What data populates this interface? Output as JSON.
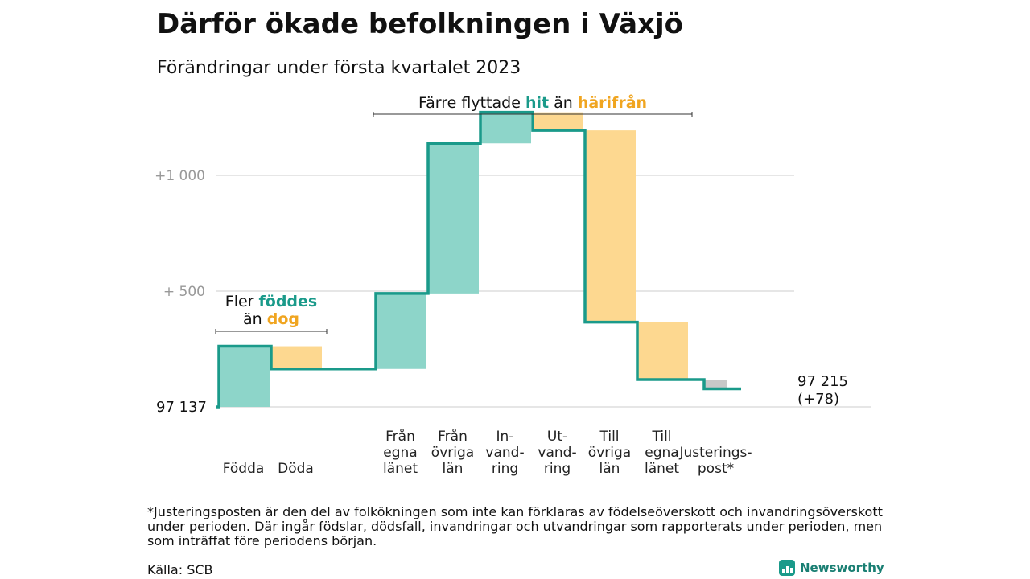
{
  "title": "Därför ökade befolkningen i Växjö",
  "subtitle": "Förändringar under första kvartalet 2023",
  "colors": {
    "line": "#1a9a8a",
    "increase": "#8dd5c9",
    "decrease": "#fdd890",
    "adjustment": "#c8c8c8",
    "teal_text": "#1a9a8a",
    "orange_text": "#f0a520",
    "grid": "#dddddd"
  },
  "chart_data": {
    "type": "waterfall",
    "start_value": 97137,
    "start_label": "97 137",
    "end_label_lines": [
      "97 215",
      "(+78)"
    ],
    "y_ticks": [
      {
        "value": 1000,
        "label": "+1 000"
      },
      {
        "value": 500,
        "label": "+ 500"
      }
    ],
    "steps": [
      {
        "id": "fodda",
        "label_lines": [
          "Födda"
        ],
        "change": 262,
        "kind": "increase"
      },
      {
        "id": "doda",
        "label_lines": [
          "Döda"
        ],
        "change": -98,
        "kind": "decrease"
      },
      {
        "id": "gap1",
        "label_lines": [],
        "change": 0,
        "kind": "gap"
      },
      {
        "id": "fran-egna-lanet",
        "label_lines": [
          "Från",
          "egna",
          "länet"
        ],
        "change": 326,
        "kind": "increase"
      },
      {
        "id": "fran-ovriga-lan",
        "label_lines": [
          "Från",
          "övriga",
          "län"
        ],
        "change": 648,
        "kind": "increase"
      },
      {
        "id": "invandring",
        "label_lines": [
          "In-",
          "vand-",
          "ring"
        ],
        "change": 134,
        "kind": "increase"
      },
      {
        "id": "utvandring",
        "label_lines": [
          "Ut-",
          "vand-",
          "ring"
        ],
        "change": -78,
        "kind": "decrease"
      },
      {
        "id": "till-ovriga-lan",
        "label_lines": [
          "Till",
          "övriga",
          "län"
        ],
        "change": -828,
        "kind": "decrease"
      },
      {
        "id": "till-egna-lanet",
        "label_lines": [
          "Till",
          "egna",
          "länet"
        ],
        "change": -248,
        "kind": "decrease"
      },
      {
        "id": "justeringspost",
        "label_lines": [
          "Justerings-",
          "post*"
        ],
        "change": -40,
        "kind": "adjustment",
        "final_line_value": 97215
      }
    ],
    "annotations": [
      {
        "id": "fodda-doda",
        "parts": [
          {
            "line": 0,
            "text": "Fler ",
            "color": "default"
          },
          {
            "line": 0,
            "text": "föddes",
            "color": "teal"
          },
          {
            "line": 1,
            "text": "än ",
            "color": "default"
          },
          {
            "line": 1,
            "text": "dog",
            "color": "orange"
          }
        ]
      },
      {
        "id": "flyttade",
        "parts": [
          {
            "line": 0,
            "text": "Färre flyttade ",
            "color": "default"
          },
          {
            "line": 0,
            "text": "hit",
            "color": "teal"
          },
          {
            "line": 0,
            "text": " än ",
            "color": "default"
          },
          {
            "line": 0,
            "text": "härifrån",
            "color": "orange"
          }
        ]
      }
    ]
  },
  "footnote": "*Justeringsposten är den del av folkökningen som inte kan förklaras av födelseöverskott och invandringsöverskott under perioden. Där ingår födslar, dödsfall, invandringar och utvandringar som rapporterats under perioden, men som inträffat före periodens början.",
  "source": "Källa: SCB",
  "brand": {
    "name": "Newsworthy",
    "icon": "newsworthy-logo-icon"
  }
}
